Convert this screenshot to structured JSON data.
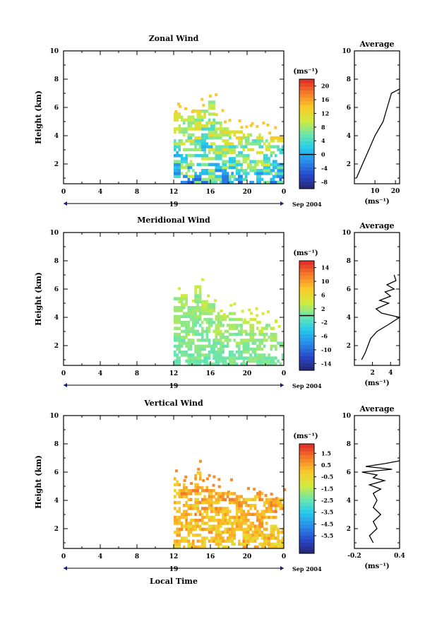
{
  "chart_data": [
    {
      "type": "heatmap",
      "title": "Zonal Wind",
      "ylabel": "Height (km)",
      "ylim": [
        0.6,
        10
      ],
      "yticks": [
        2,
        4,
        6,
        8,
        10
      ],
      "xlim": [
        0,
        24
      ],
      "xticks": [
        "0",
        "4",
        "8",
        "12",
        "16",
        "20",
        "0"
      ],
      "date_center": "19",
      "date_right": "Sep 2004",
      "colorbar": {
        "unit": "(ms⁻¹)",
        "range": [
          -10,
          22
        ],
        "ticks": [
          "20",
          "16",
          "12",
          "8",
          "4",
          "0",
          "-4",
          "-8"
        ],
        "zero": 0
      },
      "data_start_hour": 12,
      "top_km": [
        5.8,
        5.6,
        5.5,
        6.0,
        5.9,
        6.5,
        5.2,
        4.7,
        4.6,
        4.4,
        4.3,
        4.4,
        4.2,
        4.1,
        4.0,
        4.0
      ],
      "gradient_low": [
        -6,
        9
      ],
      "gradient_high": [
        7,
        14
      ],
      "average": {
        "title": "Average",
        "xlim": [
          0,
          22
        ],
        "xticks": [
          "10",
          "20"
        ],
        "xlabel": "(ms⁻¹)",
        "height_km": [
          1.0,
          2.0,
          3.0,
          4.0,
          4.5,
          5.0,
          5.5,
          6.0,
          6.5,
          7.0,
          7.3
        ],
        "values": [
          1,
          4,
          7,
          10,
          12,
          14,
          15,
          16,
          17,
          18,
          22
        ]
      }
    },
    {
      "type": "heatmap",
      "title": "Meridional Wind",
      "ylabel": "Height (km)",
      "ylim": [
        0.6,
        10
      ],
      "yticks": [
        2,
        4,
        6,
        8,
        10
      ],
      "xlim": [
        0,
        24
      ],
      "xticks": [
        "0",
        "4",
        "8",
        "12",
        "16",
        "20",
        "0"
      ],
      "date_center": "19",
      "date_right": "Sep 2004",
      "colorbar": {
        "unit": "(ms⁻¹)",
        "range": [
          -16,
          16
        ],
        "ticks": [
          "14",
          "10",
          "6",
          "2",
          "-2",
          "-6",
          "-10",
          "-14"
        ],
        "zero": 0
      },
      "data_start_hour": 12,
      "top_km": [
        5.5,
        5.8,
        5.2,
        6.3,
        5.4,
        5.2,
        4.5,
        4.2,
        4.4,
        4.1,
        3.9,
        4.0,
        3.8,
        3.7,
        3.5,
        3.2
      ],
      "gradient_low": [
        -1,
        1
      ],
      "gradient_high": [
        1,
        4
      ],
      "average": {
        "title": "Average",
        "xlim": [
          0,
          5
        ],
        "xticks": [
          "2",
          "4"
        ],
        "xlabel": "(ms⁻¹)",
        "height_km": [
          1.0,
          1.5,
          2.0,
          2.5,
          3.0,
          3.5,
          4.0,
          4.3,
          4.6,
          5.0,
          5.2,
          5.5,
          5.8,
          6.0,
          6.3,
          6.6,
          7.0
        ],
        "values": [
          0.8,
          1.2,
          1.5,
          1.8,
          2.5,
          3.8,
          5.0,
          3.0,
          2.4,
          3.8,
          2.8,
          4.0,
          3.4,
          4.4,
          3.6,
          4.6,
          4.4
        ]
      }
    },
    {
      "type": "heatmap",
      "title": "Vertical Wind",
      "ylabel": "Height (km)",
      "xlabel": "Local Time",
      "ylim": [
        0.6,
        10
      ],
      "yticks": [
        2,
        4,
        6,
        8,
        10
      ],
      "xlim": [
        0,
        24
      ],
      "xticks": [
        "0",
        "4",
        "8",
        "12",
        "16",
        "20",
        "0"
      ],
      "date_center": "19",
      "date_right": "Sep 2004",
      "colorbar": {
        "unit": "(ms⁻¹)",
        "range": [
          -7,
          2.3
        ],
        "ticks": [
          "1.5",
          "0.5",
          "-0.5",
          "-1.5",
          "-2.5",
          "-3.5",
          "-4.5",
          "-5.5"
        ]
      },
      "data_start_hour": 12,
      "top_km": [
        5.9,
        5.4,
        5.2,
        6.2,
        5.2,
        5.0,
        4.8,
        4.6,
        4.8,
        4.5,
        4.7,
        4.4,
        4.6,
        4.3,
        4.2,
        4.2
      ],
      "gradient_low": [
        -0.7,
        0.4
      ],
      "gradient_high": [
        0.0,
        0.9
      ],
      "average": {
        "title": "Average",
        "xlim": [
          -0.2,
          0.4
        ],
        "xticks": [
          "-0.2",
          "0.4"
        ],
        "xlabel": "(ms⁻¹)",
        "height_km": [
          1.0,
          1.5,
          2.0,
          2.5,
          3.0,
          3.5,
          4.0,
          4.5,
          4.8,
          5.1,
          5.4,
          5.6,
          5.8,
          6.0,
          6.2,
          6.4,
          6.6,
          6.8
        ],
        "values": [
          0.05,
          0.0,
          0.1,
          0.05,
          0.15,
          0.05,
          0.1,
          0.05,
          0.15,
          0.0,
          0.2,
          0.05,
          0.1,
          -0.1,
          0.3,
          -0.05,
          0.2,
          0.4
        ]
      }
    }
  ]
}
